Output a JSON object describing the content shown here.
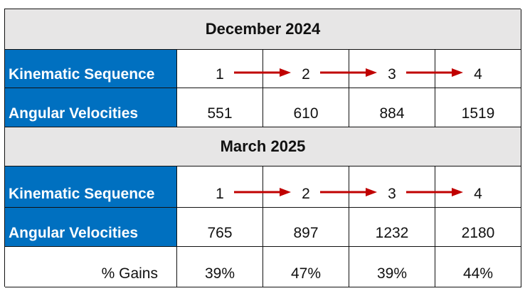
{
  "sections": [
    {
      "title": "December 2024",
      "sequence": {
        "label": "Kinematic Sequence",
        "values": [
          "1",
          "2",
          "3",
          "4"
        ]
      },
      "velocities": {
        "label": "Angular Velocities",
        "values": [
          "551",
          "610",
          "884",
          "1519"
        ]
      }
    },
    {
      "title": "March 2025",
      "sequence": {
        "label": "Kinematic Sequence",
        "values": [
          "1",
          "2",
          "3",
          "4"
        ]
      },
      "velocities": {
        "label": "Angular Velocities",
        "values": [
          "765",
          "897",
          "1232",
          "2180"
        ]
      }
    }
  ],
  "gains": {
    "label": "% Gains",
    "values": [
      "39%",
      "47%",
      "39%",
      "44%"
    ]
  },
  "colors": {
    "label_fill": "#0070c0",
    "header_fill": "#e7e6e6",
    "arrow": "#c00000"
  },
  "icons": {
    "sequence_arrow": "right-arrow-icon"
  }
}
